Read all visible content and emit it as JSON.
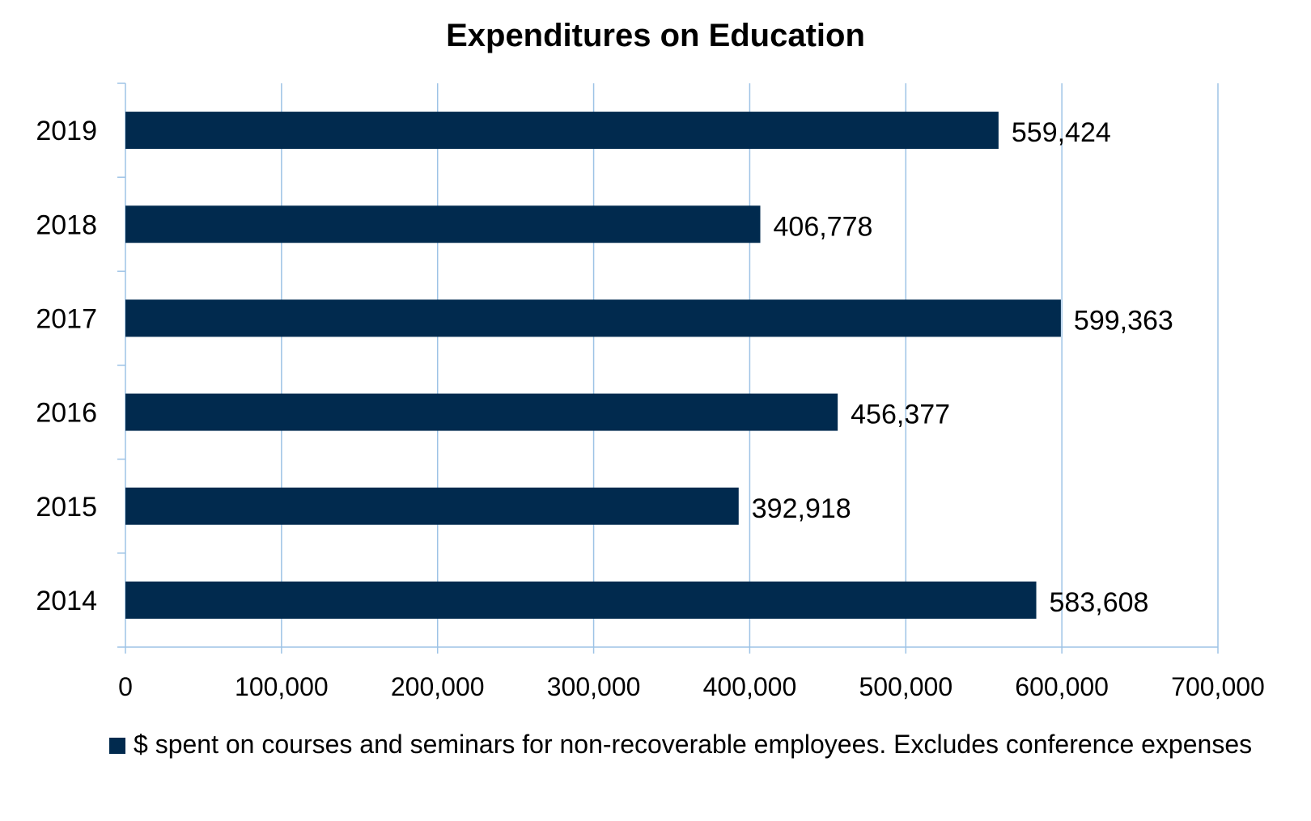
{
  "chart_data": {
    "type": "bar",
    "orientation": "horizontal",
    "title": "Expenditures on Education",
    "xlabel": "",
    "ylabel": "",
    "categories": [
      "2014",
      "2015",
      "2016",
      "2017",
      "2018",
      "2019"
    ],
    "series": [
      {
        "name": "$ spent on courses and seminars for non-recoverable employees. Excludes conference expenses",
        "values": [
          583608,
          392918,
          456377,
          599363,
          406778,
          559424
        ],
        "data_labels": [
          "583,608",
          "392,918",
          "456,377",
          "599,363",
          "406,778",
          "559,424"
        ],
        "color": "#012a4e"
      }
    ],
    "xlim": [
      0,
      700000
    ],
    "x_ticks": [
      0,
      100000,
      200000,
      300000,
      400000,
      500000,
      600000,
      700000
    ],
    "x_tick_labels": [
      "0",
      "100,000",
      "200,000",
      "300,000",
      "400,000",
      "500,000",
      "600,000",
      "700,000"
    ],
    "grid": "vertical",
    "grid_color": "#9dc3e6",
    "legend_position": "bottom"
  }
}
